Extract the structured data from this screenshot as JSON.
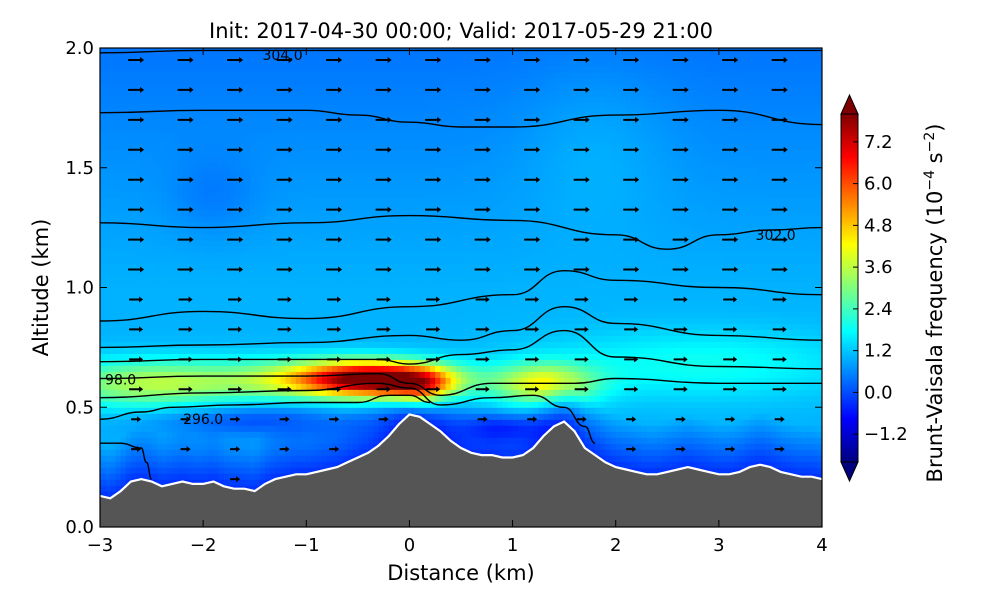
{
  "chart_data": {
    "type": "heatmap",
    "title": "Init: 2017-04-30 00:00; Valid: 2017-05-29 21:00",
    "xlabel": "Distance (km)",
    "ylabel": "Altitude (km)",
    "xlim": [
      -3,
      4
    ],
    "ylim": [
      0,
      2.0
    ],
    "x_ticks": [
      "−3",
      "−2",
      "−1",
      "0",
      "1",
      "2",
      "3",
      "4"
    ],
    "y_ticks": [
      "0.0",
      "0.5",
      "1.0",
      "1.5",
      "2.0"
    ],
    "grid": false,
    "colorbar": {
      "label": "Brunt-Vaisala frequency (10",
      "label_exp": "−4",
      "label_unit": " s",
      "label_unit_exp": "−2",
      "label_end": ")",
      "range": [
        -2.0,
        8.0
      ],
      "ticks": [
        "−1.2",
        "0.0",
        "1.2",
        "2.4",
        "3.6",
        "4.8",
        "6.0",
        "7.2"
      ],
      "colors": [
        "#00007f",
        "#0000ff",
        "#007fff",
        "#00ffff",
        "#7fff7f",
        "#ffff00",
        "#ff7f00",
        "#ff0000",
        "#7f0000"
      ]
    },
    "terrain": {
      "color": "#555555",
      "x": [
        -3.0,
        -2.9,
        -2.8,
        -2.7,
        -2.6,
        -2.5,
        -2.4,
        -2.3,
        -2.2,
        -2.1,
        -2.0,
        -1.9,
        -1.8,
        -1.7,
        -1.6,
        -1.5,
        -1.4,
        -1.3,
        -1.2,
        -1.1,
        -1.0,
        -0.9,
        -0.8,
        -0.7,
        -0.6,
        -0.5,
        -0.4,
        -0.3,
        -0.2,
        -0.1,
        0.0,
        0.1,
        0.2,
        0.3,
        0.4,
        0.5,
        0.6,
        0.7,
        0.8,
        0.9,
        1.0,
        1.1,
        1.2,
        1.3,
        1.4,
        1.5,
        1.6,
        1.7,
        1.8,
        1.9,
        2.0,
        2.1,
        2.2,
        2.3,
        2.4,
        2.5,
        2.6,
        2.7,
        2.8,
        2.9,
        3.0,
        3.1,
        3.2,
        3.3,
        3.4,
        3.5,
        3.6,
        3.7,
        3.8,
        3.9,
        4.0
      ],
      "z": [
        0.13,
        0.12,
        0.15,
        0.19,
        0.2,
        0.19,
        0.17,
        0.18,
        0.19,
        0.18,
        0.18,
        0.19,
        0.17,
        0.16,
        0.16,
        0.15,
        0.18,
        0.2,
        0.21,
        0.22,
        0.22,
        0.23,
        0.24,
        0.25,
        0.27,
        0.29,
        0.31,
        0.34,
        0.38,
        0.43,
        0.47,
        0.46,
        0.43,
        0.4,
        0.36,
        0.33,
        0.31,
        0.3,
        0.3,
        0.29,
        0.29,
        0.3,
        0.33,
        0.38,
        0.42,
        0.44,
        0.4,
        0.33,
        0.3,
        0.27,
        0.25,
        0.24,
        0.23,
        0.22,
        0.22,
        0.23,
        0.24,
        0.25,
        0.24,
        0.23,
        0.22,
        0.22,
        0.23,
        0.25,
        0.26,
        0.25,
        0.23,
        0.22,
        0.21,
        0.21,
        0.2
      ]
    },
    "field_blobs": [
      {
        "x": -0.3,
        "y": 0.62,
        "sx": 0.5,
        "sy": 0.05,
        "v": 6.8
      },
      {
        "x": 0.1,
        "y": 0.58,
        "sx": 0.2,
        "sy": 0.05,
        "v": 3.0
      },
      {
        "x": -1.0,
        "y": 0.62,
        "sx": 0.6,
        "sy": 0.06,
        "v": 2.0
      },
      {
        "x": -2.5,
        "y": 0.6,
        "sx": 0.7,
        "sy": 0.07,
        "v": 2.5
      },
      {
        "x": 1.3,
        "y": 0.6,
        "sx": 0.35,
        "sy": 0.06,
        "v": 3.0
      },
      {
        "x": 2.8,
        "y": 0.68,
        "sx": 1.1,
        "sy": 0.1,
        "v": 0.9
      },
      {
        "x": -1.5,
        "y": 0.45,
        "sx": 0.7,
        "sy": 0.05,
        "v": -1.0
      },
      {
        "x": 0.9,
        "y": 0.42,
        "sx": 0.3,
        "sy": 0.04,
        "v": -0.9
      },
      {
        "x": -1.9,
        "y": 1.38,
        "sx": 0.3,
        "sy": 0.12,
        "v": -0.3
      },
      {
        "x": 1.8,
        "y": 1.6,
        "sx": 0.5,
        "sy": 0.25,
        "v": 0.3
      }
    ],
    "contours": [
      {
        "label": "304.0",
        "label_x": -1.23,
        "label_y": 1.97,
        "x": [
          -3,
          -2,
          -1,
          0,
          1,
          2,
          3,
          4
        ],
        "y": [
          1.98,
          1.99,
          1.99,
          1.99,
          1.99,
          1.99,
          1.99,
          1.99
        ]
      },
      {
        "label": "",
        "x": [
          -3,
          -2,
          -1,
          -0.5,
          0,
          0.5,
          1,
          2,
          3,
          4
        ],
        "y": [
          1.73,
          1.74,
          1.74,
          1.72,
          1.69,
          1.67,
          1.67,
          1.72,
          1.74,
          1.68
        ]
      },
      {
        "label": "302.0",
        "label_x": 3.55,
        "label_y": 1.22,
        "x": [
          -3,
          -2,
          -1,
          0,
          1,
          2,
          2.5,
          3,
          3.5,
          4
        ],
        "y": [
          1.27,
          1.25,
          1.27,
          1.3,
          1.28,
          1.22,
          1.16,
          1.22,
          1.24,
          1.25
        ]
      },
      {
        "label": "",
        "x": [
          -3,
          -2,
          -1,
          0,
          1,
          1.5,
          2,
          3,
          4
        ],
        "y": [
          0.86,
          0.9,
          0.87,
          0.92,
          0.97,
          1.07,
          1.03,
          1.0,
          0.97
        ]
      },
      {
        "label": "",
        "x": [
          -3,
          -2,
          -1,
          0,
          0.5,
          1,
          1.5,
          2,
          3,
          4
        ],
        "y": [
          0.75,
          0.76,
          0.77,
          0.8,
          0.78,
          0.82,
          0.92,
          0.85,
          0.8,
          0.78
        ]
      },
      {
        "label": "",
        "x": [
          -3,
          -2,
          -1,
          -0.3,
          0,
          0.5,
          1,
          1.5,
          2,
          3,
          4
        ],
        "y": [
          0.69,
          0.7,
          0.7,
          0.7,
          0.68,
          0.72,
          0.74,
          0.82,
          0.71,
          0.67,
          0.66
        ]
      },
      {
        "label": "98.0",
        "label_x": -2.8,
        "label_y": 0.615,
        "x": [
          -3,
          -2,
          -1,
          -0.3,
          0,
          0.3,
          0.8,
          1.2,
          1.6,
          2,
          3,
          4
        ],
        "y": [
          0.62,
          0.63,
          0.63,
          0.64,
          0.6,
          0.55,
          0.6,
          0.6,
          0.6,
          0.62,
          0.6,
          0.6
        ]
      },
      {
        "label": "",
        "x": [
          -3,
          -2,
          -1,
          -0.3,
          0,
          0.3,
          0.8,
          1.2,
          1.5,
          1.7,
          1.8
        ],
        "y": [
          0.54,
          0.56,
          0.57,
          0.6,
          0.58,
          0.51,
          0.54,
          0.55,
          0.5,
          0.42,
          0.35
        ]
      },
      {
        "label": "296.0",
        "label_x": -2.0,
        "label_y": 0.45,
        "x": [
          -3,
          -2.6,
          -2.3,
          -1.7,
          -1,
          -0.5,
          -0.2,
          0.0,
          0.2
        ],
        "y": [
          0.45,
          0.48,
          0.5,
          0.51,
          0.52,
          0.52,
          0.55,
          0.55,
          0.52
        ]
      },
      {
        "label": "",
        "x": [
          -3,
          -2.8,
          -2.6,
          -2.55,
          -2.5
        ],
        "y": [
          0.35,
          0.35,
          0.33,
          0.27,
          0.2
        ]
      }
    ]
  }
}
